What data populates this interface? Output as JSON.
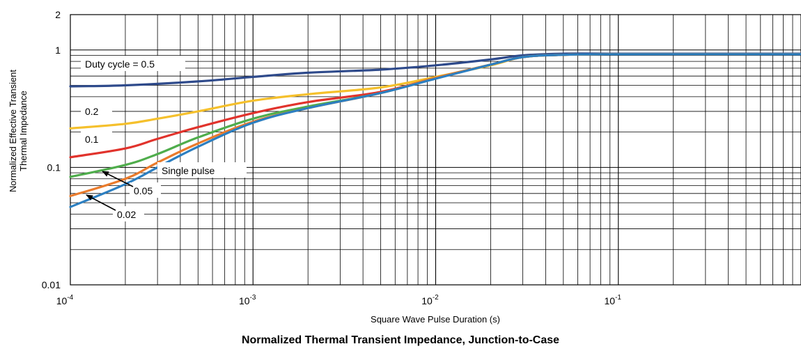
{
  "chart_data": {
    "type": "line",
    "title": "Normalized Thermal Transient Impedance, Junction-to-Case",
    "xlabel": "Square Wave Pulse Duration (s)",
    "ylabel": [
      "Normalized Effective Transient",
      "Thermal Impedance"
    ],
    "x_scale": "log",
    "y_scale": "log",
    "xlim": [
      0.0001,
      1
    ],
    "ylim": [
      0.01,
      2
    ],
    "grid": true,
    "x_ticks": [
      {
        "base": "10",
        "exp": "-4"
      },
      {
        "base": "10",
        "exp": "-3"
      },
      {
        "base": "10",
        "exp": "-2"
      },
      {
        "base": "10",
        "exp": "-1"
      }
    ],
    "y_ticks": [
      "2",
      "1",
      "0.1",
      "0.01"
    ],
    "series": [
      {
        "name": "Duty cycle = 0.5",
        "color": "#2e4a8b",
        "x": [
          0.0001,
          0.0002,
          0.0005,
          0.001,
          0.002,
          0.005,
          0.01,
          0.02,
          0.03,
          0.05,
          0.1,
          0.2,
          0.5,
          1
        ],
        "y": [
          0.49,
          0.5,
          0.54,
          0.59,
          0.64,
          0.68,
          0.74,
          0.83,
          0.9,
          0.93,
          0.93,
          0.93,
          0.93,
          0.93
        ]
      },
      {
        "name": "0.2",
        "color": "#f5c02c",
        "x": [
          0.0001,
          0.0002,
          0.0003,
          0.0005,
          0.001,
          0.002,
          0.005,
          0.01,
          0.02,
          0.03,
          0.05,
          0.1,
          1
        ],
        "y": [
          0.215,
          0.235,
          0.26,
          0.3,
          0.37,
          0.42,
          0.48,
          0.59,
          0.74,
          0.87,
          0.91,
          0.92,
          0.92
        ]
      },
      {
        "name": "0.1",
        "color": "#e1332c",
        "x": [
          0.0001,
          0.0002,
          0.0003,
          0.0005,
          0.001,
          0.002,
          0.005,
          0.01,
          0.02,
          0.03,
          0.05,
          0.1,
          1
        ],
        "y": [
          0.122,
          0.145,
          0.175,
          0.22,
          0.29,
          0.36,
          0.44,
          0.58,
          0.75,
          0.87,
          0.91,
          0.92,
          0.92
        ]
      },
      {
        "name": "0.05",
        "color": "#4fad4c",
        "x": [
          0.0001,
          0.0002,
          0.0003,
          0.0005,
          0.001,
          0.002,
          0.005,
          0.01,
          0.02,
          0.03,
          0.05,
          0.1,
          1
        ],
        "y": [
          0.083,
          0.105,
          0.13,
          0.18,
          0.26,
          0.33,
          0.43,
          0.58,
          0.75,
          0.87,
          0.91,
          0.92,
          0.92
        ]
      },
      {
        "name": "0.02",
        "color": "#ea7b2c",
        "x": [
          0.0001,
          0.0002,
          0.0003,
          0.0005,
          0.001,
          0.002,
          0.005,
          0.01,
          0.02,
          0.03,
          0.05,
          0.1,
          1
        ],
        "y": [
          0.057,
          0.08,
          0.11,
          0.16,
          0.245,
          0.32,
          0.43,
          0.58,
          0.75,
          0.87,
          0.91,
          0.92,
          0.92
        ]
      },
      {
        "name": "Single pulse",
        "color": "#2c7fc1",
        "x": [
          0.0001,
          0.0002,
          0.0003,
          0.0005,
          0.001,
          0.002,
          0.005,
          0.01,
          0.02,
          0.03,
          0.05,
          0.1,
          1
        ],
        "y": [
          0.046,
          0.072,
          0.1,
          0.15,
          0.24,
          0.32,
          0.43,
          0.57,
          0.75,
          0.87,
          0.91,
          0.92,
          0.92
        ]
      }
    ],
    "annotations": [
      {
        "text": "Duty cycle = 0.5",
        "series": "Duty cycle = 0.5"
      },
      {
        "text": "0.2",
        "series": "0.2"
      },
      {
        "text": "0.1",
        "series": "0.1"
      },
      {
        "text": "Single pulse",
        "series": "Single pulse"
      },
      {
        "text": "0.05",
        "series": "0.05",
        "arrow": true
      },
      {
        "text": "0.02",
        "series": "0.02",
        "arrow": true
      }
    ]
  }
}
